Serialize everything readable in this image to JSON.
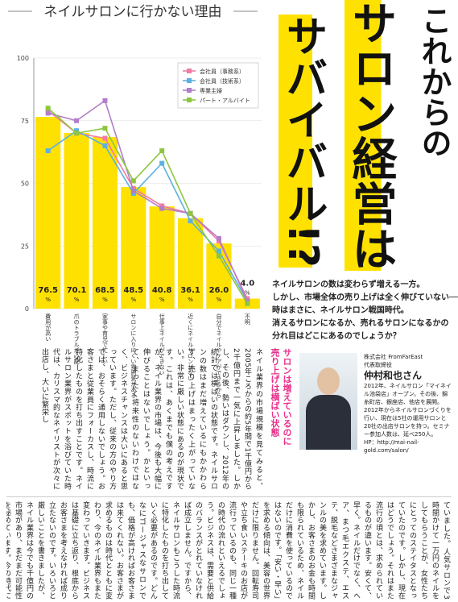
{
  "chart_data": {
    "type": "bar_line",
    "title": "ネイルサロンに行かない理由",
    "categories": [
      "費用が高い",
      "爪のトラブルが心配",
      "家事や育児で忙しい",
      "サロンに入りにくい雰囲気がある",
      "仕事上ネイルができない",
      "近くにネイルサロンがない",
      "自分でネイルやケアができるから",
      "不明"
    ],
    "values": [
      76.5,
      70.1,
      68.5,
      48.5,
      40.8,
      36.1,
      26.0,
      4.0
    ],
    "value_labels": [
      "76.5",
      "70.1",
      "68.5",
      "48.5",
      "40.8",
      "36.1",
      "26.0",
      "4.0"
    ],
    "value_unit": "%",
    "color": "#ffe100",
    "series": [
      {
        "name": "会社員（事務系）",
        "color": "#f27ba3",
        "values": [
          79,
          70,
          68,
          48,
          41,
          38,
          27,
          4
        ]
      },
      {
        "name": "会社員（技術系）",
        "color": "#5cb0e2",
        "values": [
          63,
          71,
          65,
          46,
          58,
          35,
          23,
          3
        ]
      },
      {
        "name": "専業主婦",
        "color": "#b27ec9",
        "values": [
          78,
          75,
          83,
          47,
          40,
          38,
          28,
          3
        ]
      },
      {
        "name": "パート・アルバイト",
        "color": "#8dc63f",
        "values": [
          80,
          70,
          72,
          51,
          63,
          38,
          21,
          2
        ]
      }
    ],
    "ylim": [
      0,
      100
    ],
    "yticks": [
      0,
      25,
      50,
      75,
      100
    ],
    "legend": "top-right"
  },
  "headline": [
    "これからの",
    "サロン経営は",
    "サバイバル!?"
  ],
  "intro": [
    "ネイルサロンの数は変わらず増える一方。",
    "しかし、市場全体の売り上げは全く伸びていない──。",
    "時はまさに、ネイルサロン戦国時代。",
    "消えるサロンになるか、売れるサロンになるかの",
    "分れ目はどこにあるのでしょうか？"
  ],
  "subheading": [
    "サロンは増えているのに",
    "売り上げは横ばい状態"
  ],
  "profile": {
    "company": "株式会社 FromFarEast",
    "role": "代表取締役",
    "name": "仲村和也さん",
    "bio": "2012年、ネイルサロン「マイネイル池袋店」オープン。その後、錦糸町店、銀座店、他店を展開。2012年からネイルサロンづくりを行い、現在は5社の運用サロンと20社の出店サロンを持つ。セミナー参加人数は、延べ250人。",
    "url": "HP：http://mai-nail-gold.com/salon/"
  },
  "body_middle": "ネイル業界の市場規模を見てみると、2005年ころからの約5年間で1千億円から2千億円まで一気に上昇しました。しかし、その後、勢いはダウンし、2012年の統計では横ばいの状態です。ネイルサロンの数はまだ増えているにもかかわらず、売り上げはまったく上がっていない。非常に厳しい状態にあるのが現状です。これは、あくまでも僕の考えですが、ネイル業界の市場は、今後も大幅に伸びることはないでしょう。かといって、まったく将来性のないわけではなく、ビジネスチャンスは大いにあると思っています。ただし、従来の方のやり方では、おそらく通用しないでしょう。お客さまと従業員にフォーカスし、時流に特化したものを打ち出すことです。ネイルサロン業界がスポットを浴びていた時代は、カリスマ的なネイリストが次々に出店し、大いに繁栄し",
  "body_bottom": "ていました。人気サロンで3時間かけて一万円のネイルをしてもらうことが、女性たちにとってのステイタスとなっていたのです。しかし、現在はどうでしょう。それはまた流行の頃とは、求められているものが違います。安くて、早く。ネイルだけでなく、ヘア、まつ毛エクステ、エステ、脱毛などさまざまなジャンルの美を求めています。しかし、お客さまのお金も時間も限られているため、ネイルだけに消費を使っているのではないのです。「安い・早い」を求める傾向は、美容の世界だけに限りません。回転寿司や立ち食いステーキのお店が流行っているのも、同じ一種の時代の流れといえるでしょう。ビジネスは、需要と供給のバランスがとれていなければ成立しません。ですから、ネイルサロンもこうした時流に特化したものを打ち出していく必要があるのです。どんなにゴージャスなサロンでも、価格が高ければお客さまは来てくれない。お客さまが求めるものは時代とともに変わり、今のネイル業界もまた変わっていきます。ビジネスは基礎に立ち返り、根底からお客さまを考えなければ成り立たないのです。いろいろと厳しいことを書きましたが、ネイル業界は今でも千億円の市場があり、まだまだ可能性を秘めています。今の時代にマッチしたビジネスを展開することができれば、夢は絶対にかなえることができるはずです！"
}
